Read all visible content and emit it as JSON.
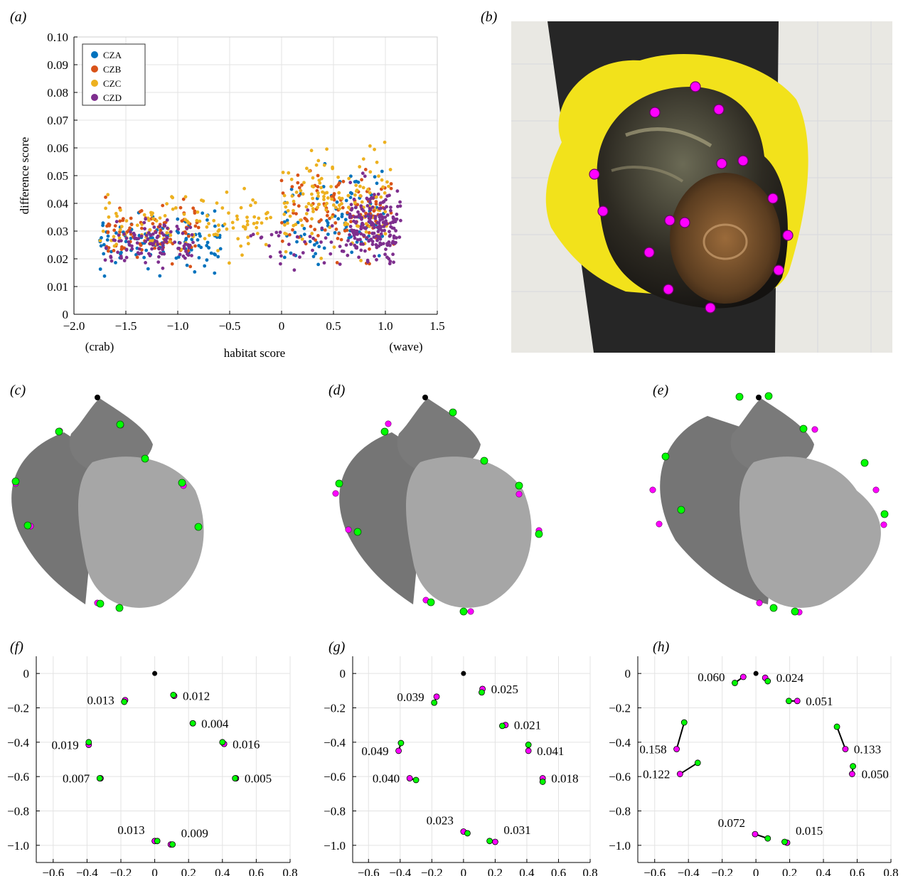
{
  "panel_labels": {
    "a": "(a)",
    "b": "(b)",
    "c": "(c)",
    "d": "(d)",
    "e": "(e)",
    "f": "(f)",
    "g": "(g)",
    "h": "(h)"
  },
  "colors": {
    "CZA": "#0072bd",
    "CZB": "#d95319",
    "CZC": "#edb120",
    "CZD": "#7e2f8e",
    "landmark": "#ff00ff",
    "green": "#00ff00",
    "shell_dark": "#6e6e6e",
    "shell_light": "#a6a6a6"
  },
  "chart_data": [
    {
      "type": "scatter",
      "panel": "a",
      "xlabel": "habitat score",
      "ylabel": "difference score",
      "xlim": [
        -2.0,
        1.5
      ],
      "ylim": [
        0,
        0.1
      ],
      "xticks": [
        "−2.0",
        "−1.5",
        "−1.0",
        "−0.5",
        "0",
        "0.5",
        "1.0",
        "1.5"
      ],
      "yticks": [
        "0",
        "0.01",
        "0.02",
        "0.03",
        "0.04",
        "0.05",
        "0.06",
        "0.07",
        "0.08",
        "0.09",
        "0.10"
      ],
      "x_annotations": {
        "left": "(crab)",
        "right": "(wave)"
      },
      "grid": true,
      "legend_position": "top-left",
      "series": [
        {
          "name": "CZA"
        },
        {
          "name": "CZB"
        },
        {
          "name": "CZC"
        },
        {
          "name": "CZD"
        }
      ],
      "clusters": [
        {
          "series": "CZA",
          "x": [
            -1.75,
            -0.55
          ],
          "y": [
            0.012,
            0.045
          ],
          "n": 110
        },
        {
          "series": "CZA",
          "x": [
            0.0,
            1.0
          ],
          "y": [
            0.012,
            0.065
          ],
          "n": 90
        },
        {
          "series": "CZB",
          "x": [
            -1.7,
            -0.8
          ],
          "y": [
            0.012,
            0.053
          ],
          "n": 90
        },
        {
          "series": "CZB",
          "x": [
            0.0,
            1.1
          ],
          "y": [
            0.012,
            0.068
          ],
          "n": 110
        },
        {
          "series": "CZC",
          "x": [
            -1.75,
            -0.1
          ],
          "y": [
            0.015,
            0.058
          ],
          "n": 120
        },
        {
          "series": "CZC",
          "x": [
            0.0,
            1.05
          ],
          "y": [
            0.015,
            0.076
          ],
          "n": 140
        },
        {
          "series": "CZD",
          "x": [
            -1.7,
            -0.85
          ],
          "y": [
            0.012,
            0.045
          ],
          "n": 110
        },
        {
          "series": "CZD",
          "x": [
            -0.3,
            0.7
          ],
          "y": [
            0.012,
            0.045
          ],
          "n": 40
        },
        {
          "series": "CZD",
          "x": [
            0.65,
            1.15
          ],
          "y": [
            0.012,
            0.058
          ],
          "n": 200
        }
      ]
    },
    {
      "type": "scatter",
      "panel": "f",
      "xlim": [
        -0.7,
        0.8
      ],
      "ylim": [
        -1.1,
        0.1
      ],
      "xticks": [
        "−0.6",
        "−0.4",
        "−0.2",
        "0",
        "0.2",
        "0.4",
        "0.6",
        "0.8"
      ],
      "yticks": [
        "0",
        "−0.2",
        "−0.4",
        "−0.6",
        "−0.8",
        "−1.0"
      ],
      "origin": [
        0,
        0
      ],
      "pairs": [
        {
          "m": [
            0.115,
            -0.13
          ],
          "g": [
            0.11,
            -0.125
          ],
          "label": "0.012"
        },
        {
          "m": [
            -0.175,
            -0.155
          ],
          "g": [
            -0.18,
            -0.165
          ],
          "label": "0.013"
        },
        {
          "m": [
            0.225,
            -0.29
          ],
          "g": [
            0.225,
            -0.29
          ],
          "label": "0.004"
        },
        {
          "m": [
            -0.39,
            -0.415
          ],
          "g": [
            -0.39,
            -0.4
          ],
          "label": "0.019"
        },
        {
          "m": [
            0.41,
            -0.41
          ],
          "g": [
            0.4,
            -0.4
          ],
          "label": "0.016"
        },
        {
          "m": [
            -0.32,
            -0.61
          ],
          "g": [
            -0.325,
            -0.61
          ],
          "label": "0.007"
        },
        {
          "m": [
            0.48,
            -0.61
          ],
          "g": [
            0.475,
            -0.61
          ],
          "label": "0.005"
        },
        {
          "m": [
            0.0,
            -0.975
          ],
          "g": [
            0.015,
            -0.975
          ],
          "label": "0.013"
        },
        {
          "m": [
            0.095,
            -0.995
          ],
          "g": [
            0.105,
            -0.995
          ],
          "label": "0.009"
        }
      ]
    },
    {
      "type": "scatter",
      "panel": "g",
      "xlim": [
        -0.7,
        0.8
      ],
      "ylim": [
        -1.1,
        0.1
      ],
      "xticks": [
        "−0.6",
        "−0.4",
        "−0.2",
        "0",
        "0.2",
        "0.4",
        "0.6",
        "0.8"
      ],
      "yticks": [
        "0",
        "−0.2",
        "−0.4",
        "−0.6",
        "−0.8",
        "−1.0"
      ],
      "origin": [
        0,
        0
      ],
      "pairs": [
        {
          "m": [
            0.12,
            -0.09
          ],
          "g": [
            0.115,
            -0.11
          ],
          "label": "0.025"
        },
        {
          "m": [
            -0.17,
            -0.135
          ],
          "g": [
            -0.185,
            -0.17
          ],
          "label": "0.039"
        },
        {
          "m": [
            0.265,
            -0.3
          ],
          "g": [
            0.245,
            -0.305
          ],
          "label": "0.021"
        },
        {
          "m": [
            -0.41,
            -0.45
          ],
          "g": [
            -0.395,
            -0.405
          ],
          "label": "0.049"
        },
        {
          "m": [
            0.41,
            -0.45
          ],
          "g": [
            0.41,
            -0.415
          ],
          "label": "0.041"
        },
        {
          "m": [
            -0.34,
            -0.61
          ],
          "g": [
            -0.3,
            -0.62
          ],
          "label": "0.040"
        },
        {
          "m": [
            0.5,
            -0.61
          ],
          "g": [
            0.5,
            -0.63
          ],
          "label": "0.018"
        },
        {
          "m": [
            0.0,
            -0.92
          ],
          "g": [
            0.025,
            -0.93
          ],
          "label": "0.023"
        },
        {
          "m": [
            0.2,
            -0.98
          ],
          "g": [
            0.165,
            -0.975
          ],
          "label": "0.031"
        }
      ]
    },
    {
      "type": "scatter",
      "panel": "h",
      "xlim": [
        -0.7,
        0.8
      ],
      "ylim": [
        -1.1,
        0.1
      ],
      "xticks": [
        "−0.6",
        "−0.4",
        "−0.2",
        "0",
        "0.2",
        "0.4",
        "0.6",
        "0.8"
      ],
      "yticks": [
        "0",
        "−0.2",
        "−0.4",
        "−0.6",
        "−0.8",
        "−1.0"
      ],
      "origin": [
        0,
        0
      ],
      "pairs": [
        {
          "m": [
            -0.075,
            -0.02
          ],
          "g": [
            -0.125,
            -0.055
          ],
          "label": "0.060"
        },
        {
          "m": [
            0.055,
            -0.025
          ],
          "g": [
            0.07,
            -0.045
          ],
          "label": "0.024"
        },
        {
          "m": [
            0.245,
            -0.16
          ],
          "g": [
            0.195,
            -0.16
          ],
          "label": "0.051"
        },
        {
          "m": [
            -0.47,
            -0.44
          ],
          "g": [
            -0.425,
            -0.285
          ],
          "label": "0.158"
        },
        {
          "m": [
            0.53,
            -0.44
          ],
          "g": [
            0.48,
            -0.31
          ],
          "label": "0.133"
        },
        {
          "m": [
            -0.45,
            -0.585
          ],
          "g": [
            -0.345,
            -0.52
          ],
          "label": "0.122"
        },
        {
          "m": [
            0.57,
            -0.585
          ],
          "g": [
            0.575,
            -0.54
          ],
          "label": "0.050"
        },
        {
          "m": [
            -0.005,
            -0.935
          ],
          "g": [
            0.07,
            -0.96
          ],
          "label": "0.072"
        },
        {
          "m": [
            0.185,
            -0.985
          ],
          "g": [
            0.17,
            -0.98
          ],
          "label": "0.015"
        }
      ]
    }
  ]
}
